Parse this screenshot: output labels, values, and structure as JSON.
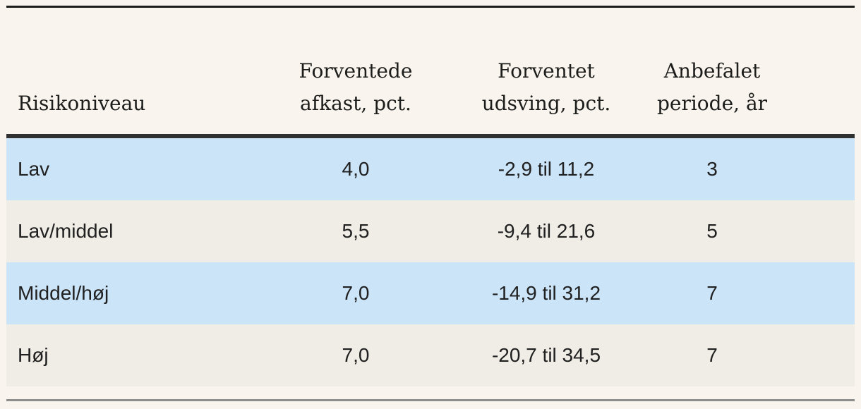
{
  "chart_data": {
    "type": "table",
    "columns": [
      "Risikoniveau",
      "Forventede afkast, pct.",
      "Forventet udsving, pct.",
      "Anbefalet periode, år"
    ],
    "rows": [
      [
        "Lav",
        "4,0",
        "-2,9 til 11,2",
        "3"
      ],
      [
        "Lav/middel",
        "5,5",
        "-9,4 til 21,6",
        "5"
      ],
      [
        "Middel/høj",
        "7,0",
        "-14,9 til 31,2",
        "7"
      ],
      [
        "Høj",
        "7,0",
        "-20,7 til 34,5",
        "7"
      ]
    ],
    "layout": {
      "row_striping": "alternating blue/beige starting with blue",
      "column_alignment": [
        "left",
        "center",
        "center",
        "center"
      ]
    }
  },
  "header": {
    "col1_line1": "Risikoniveau",
    "col2_line1": "Forventede",
    "col2_line2": "afkast, pct.",
    "col3_line1": "Forventet",
    "col3_line2": "udsving, pct.",
    "col4_line1": "Anbefalet",
    "col4_line2": "periode, år"
  },
  "colors": {
    "background": "#f9f5ee",
    "row_blue": "#cbe4f8",
    "row_beige": "#f0ede6",
    "rule_top": "#1c1c1a",
    "rule_header": "#313131",
    "rule_bottom": "#8d8d8b",
    "header_text": "#1d1d1b",
    "body_text": "#202020"
  }
}
